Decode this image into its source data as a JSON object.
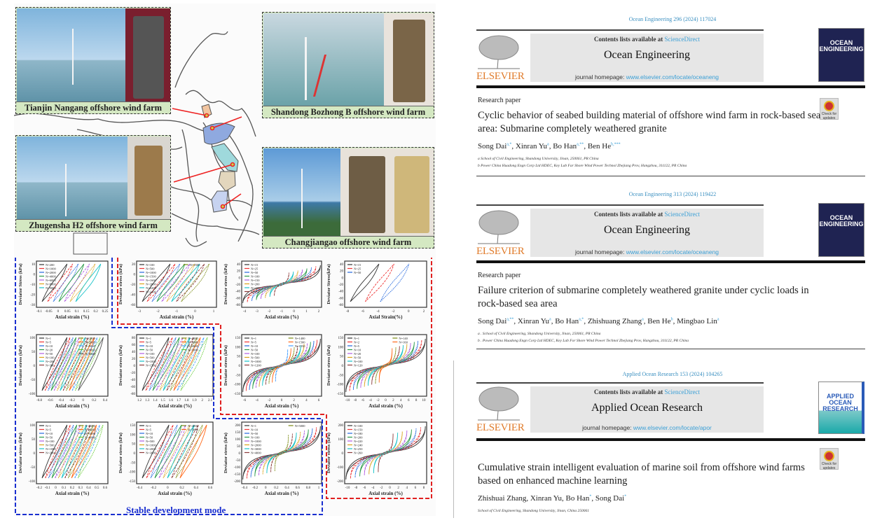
{
  "figure": {
    "sites": [
      {
        "caption": "Tianjin Nangang offshore wind farm"
      },
      {
        "caption": "Shandong Bozhong B offshore wind farm"
      },
      {
        "caption": "Zhugensha H2 offshore wind farm"
      },
      {
        "caption": "Changjiangao offshore wind farm"
      }
    ],
    "mode_label": "Stable development mode",
    "colors": {
      "blue_border": "#1a2fd0",
      "red_border": "#e02020",
      "arrow": "#ee2222"
    },
    "plots": [
      {
        "ylabel": "Deviator Stress (kPa)",
        "xlabel": "Axial strain (%)",
        "xticks": [
          "-0.1",
          "-0.05",
          "0",
          "0.05",
          "0.1",
          "0.15",
          "0.2",
          "0.25"
        ],
        "yticks": [
          "10",
          "0",
          "-10",
          "-20",
          "-30"
        ],
        "legend": [
          "N=200",
          "N=1000",
          "N=2000",
          "N=4000",
          "N=6000",
          "N=8000",
          "N=9000"
        ]
      },
      {
        "ylabel": "Deviator stress (kPa)",
        "xlabel": "Axial strain (%)",
        "xticks": [
          "-3",
          "-2",
          "-1",
          "0",
          "1"
        ],
        "yticks": [
          "20",
          "0",
          "-20",
          "-40",
          "-60"
        ],
        "legend": [
          "N=100",
          "N=500",
          "N=1000",
          "N=1500",
          "N=1600",
          "N=2000",
          "N=2200",
          "N=2400",
          "N=2500"
        ]
      },
      {
        "ylabel": "Deviator stress (kPa)",
        "xlabel": "Axial strain (%)",
        "xticks": [
          "-4",
          "-3",
          "-2",
          "-1",
          "0",
          "1",
          "2"
        ],
        "yticks": [
          "40",
          "20",
          "0",
          "-20",
          "-40",
          "-60",
          "-80"
        ],
        "legend": [
          "N=15",
          "N=25",
          "N=50",
          "N=100",
          "N=150",
          "N=200",
          "N=230",
          "N=250"
        ]
      },
      {
        "ylabel": "Deviator Stress(kPa)",
        "xlabel": "Axial Strain(%)",
        "xticks": [
          "-8",
          "-6",
          "-4",
          "-2",
          "0",
          "2"
        ],
        "yticks": [
          "40",
          "20",
          "0",
          "-20",
          "-40",
          "-60",
          "-80"
        ],
        "legend": [
          "N=15",
          "N=25",
          "N=50"
        ]
      },
      {
        "ylabel": "Deviator stress (kPa)",
        "xlabel": "Axial strain (%)",
        "xticks": [
          "-0.8",
          "-0.6",
          "-0.4",
          "-0.2",
          "0",
          "0.2",
          "0.4"
        ],
        "yticks": [
          "100",
          "50",
          "0",
          "-50",
          "-100"
        ],
        "legend": [
          "N=1",
          "N=5",
          "N=10",
          "N=20",
          "N=50",
          "N=100",
          "N=200",
          "N=300",
          "N=1000",
          "N=2000",
          "N=5000",
          "N=6000",
          "N=8000"
        ]
      },
      {
        "ylabel": "Deviator stress (kPa)",
        "xlabel": "Axial strain (%)",
        "xticks": [
          "1.2",
          "1.3",
          "1.4",
          "1.5",
          "1.6",
          "1.7",
          "1.8",
          "1.9",
          "2",
          "2.1"
        ],
        "yticks": [
          "80",
          "60",
          "40",
          "20",
          "0",
          "-20",
          "-40",
          "-60",
          "-80"
        ],
        "legend": [
          "N=1",
          "N=5",
          "N=10",
          "N=50",
          "N=100",
          "N=500",
          "N=1000",
          "N=1500",
          "N=2000",
          "N=3000",
          "N=4000",
          "N=5000"
        ]
      },
      {
        "ylabel": "Deviator stress (kPa)",
        "xlabel": "Axial strain (%)",
        "xticks": [
          "-6",
          "-4",
          "-2",
          "0",
          "2",
          "4",
          "6"
        ],
        "yticks": [
          "150",
          "100",
          "50",
          "0",
          "-50",
          "-100",
          "-150"
        ],
        "legend": [
          "N=1",
          "N=5",
          "N=10",
          "N=50",
          "N=100",
          "N=500",
          "N=1000",
          "N=1200",
          "N=1400",
          "N=1500",
          "N=1550"
        ]
      },
      {
        "ylabel": "Deviator stress (kPa)",
        "xlabel": "Axial strain (%)",
        "xticks": [
          "-10",
          "-8",
          "-6",
          "-4",
          "-2",
          "0",
          "2",
          "4",
          "6",
          "8",
          "10"
        ],
        "yticks": [
          "150",
          "100",
          "50",
          "0",
          "-50",
          "-100",
          "-150"
        ],
        "legend": [
          "N=1",
          "N=2",
          "N=5",
          "N=10",
          "N=20",
          "N=50",
          "N=100",
          "N=120",
          "N=140",
          "N=160"
        ]
      },
      {
        "ylabel": "Deviator stress (kPa)",
        "xlabel": "Axial strain (%)",
        "xticks": [
          "-0.2",
          "-0.1",
          "0",
          "0.1",
          "0.2",
          "0.3",
          "0.4",
          "0.5",
          "0.6"
        ],
        "yticks": [
          "100",
          "50",
          "0",
          "-50",
          "-100"
        ],
        "legend": [
          "N=1",
          "N=5",
          "N=10",
          "N=50",
          "N=100",
          "N=500",
          "N=1000",
          "N=2000",
          "N=3000",
          "N=4000",
          "N=5000",
          "N=6000"
        ]
      },
      {
        "ylabel": "Deviator stress (kPa)",
        "xlabel": "Axial strain (%)",
        "xticks": [
          "-0.4",
          "-0.2",
          "0",
          "0.2",
          "0.4",
          "0.6"
        ],
        "yticks": [
          "150",
          "100",
          "50",
          "0",
          "-50",
          "-100",
          "-150"
        ],
        "legend": [
          "N=1",
          "N=5",
          "N=10",
          "N=50",
          "N=500",
          "N=1000",
          "N=2000",
          "N=3000",
          "N=4000",
          "N=5000"
        ]
      },
      {
        "ylabel": "Deviator stress (kPa)",
        "xlabel": "Axial strain (%)",
        "xticks": [
          "-0.4",
          "-0.2",
          "0",
          "0.2",
          "0.4",
          "0.6",
          "0.8",
          "1"
        ],
        "yticks": [
          "200",
          "150",
          "100",
          "50",
          "0",
          "-50",
          "-100",
          "-150",
          "-200"
        ],
        "legend": [
          "N=1",
          "N=10",
          "N=50",
          "N=100",
          "N=1000",
          "N=2000",
          "N=3000",
          "N=4000",
          "N=5000"
        ]
      },
      {
        "ylabel": "Deviator stress (kPa)",
        "xlabel": "Axial strain (%)",
        "xticks": [
          "-10",
          "-8",
          "-6",
          "-4",
          "-2",
          "0",
          "2",
          "4",
          "6",
          "8"
        ],
        "yticks": [
          "200",
          "100",
          "0",
          "-100",
          "-200"
        ],
        "legend": [
          "N=100",
          "N=150",
          "N=180",
          "N=200",
          "N=220",
          "N=240",
          "N=250",
          "N=260"
        ]
      }
    ]
  },
  "papers": [
    {
      "doi": "Ocean Engineering 296 (2024) 117024",
      "contents": "Contents lists available at ",
      "sciencedirect": "ScienceDirect",
      "journal": "Ocean Engineering",
      "homepage_label": "journal homepage: ",
      "homepage_url": "www.elsevier.com/locate/oceaneng",
      "publisher": "ELSEVIER",
      "cover_text": "OCEAN ENGINEERING",
      "type": "Research paper",
      "check_label": "Check for updates",
      "title": "Cyclic behavior of seabed building material of offshore wind farm in rock-based sea area: Submarine completely weathered granite",
      "authors": [
        {
          "name": "Song Dai",
          "sup": "a,*"
        },
        {
          "name": "Xinran Yu",
          "sup": "a"
        },
        {
          "name": "Bo Han",
          "sup": "a,**"
        },
        {
          "name": "Ben He",
          "sup": "b,***"
        }
      ],
      "affiliations": [
        "a School of Civil Engineering, Shandong University, Jinan, 250061, PR China",
        "b Power China Huadong Engn Corp Ltd HDEC, Key Lab Far Shore Wind Power Technol Zhejiang Prov, Hangzhou, 311122, PR China"
      ]
    },
    {
      "doi": "Ocean Engineering 313 (2024) 119422",
      "contents": "Contents lists available at ",
      "sciencedirect": "ScienceDirect",
      "journal": "Ocean Engineering",
      "homepage_label": "journal homepage: ",
      "homepage_url": "www.elsevier.com/locate/oceaneng",
      "publisher": "ELSEVIER",
      "cover_text": "OCEAN ENGINEERING",
      "type": "Research paper",
      "title": "Failure criterion of submarine completely weathered granite under cyclic loads in rock-based sea area",
      "authors": [
        {
          "name": "Song Dai",
          "sup": "a,**"
        },
        {
          "name": "Xinran Yu",
          "sup": "a"
        },
        {
          "name": "Bo Han",
          "sup": "a,*"
        },
        {
          "name": "Zhishuang Zhang",
          "sup": "a"
        },
        {
          "name": "Ben He",
          "sup": "b"
        },
        {
          "name": "Mingbao Lin",
          "sup": "a"
        }
      ],
      "affiliations": [
        "a . School of Civil Engineering, Shandong University, Jinan, 250061, PR China",
        "b . Power China Huadong Engn Corp Ltd HDEC, Key Lab For Shore Wind Power Technol Zhejiang Prov, Hangzhou, 311122, PR China"
      ]
    },
    {
      "doi": "Applied Ocean Research 153 (2024) 104265",
      "contents": "Contents lists available at ",
      "sciencedirect": "ScienceDirect",
      "journal": "Applied Ocean Research",
      "homepage_label": "journal homepage: ",
      "homepage_url": "www.elsevier.com/locate/apor",
      "publisher": "ELSEVIER",
      "cover_text": "APPLIED OCEAN RESEARCH",
      "check_label": "Check for updates",
      "title": "Cumulative strain intelligent evaluation of marine soil from offshore wind farms based on enhanced machine learning",
      "authors": [
        {
          "name": "Zhishuai Zhang",
          "sup": ""
        },
        {
          "name": "Xinran Yu",
          "sup": ""
        },
        {
          "name": "Bo Han",
          "sup": "*"
        },
        {
          "name": "Song Dai",
          "sup": "*"
        }
      ],
      "affiliations": [
        "School of Civil Engineering, Shandong University, Jinan, China 250061"
      ]
    }
  ]
}
